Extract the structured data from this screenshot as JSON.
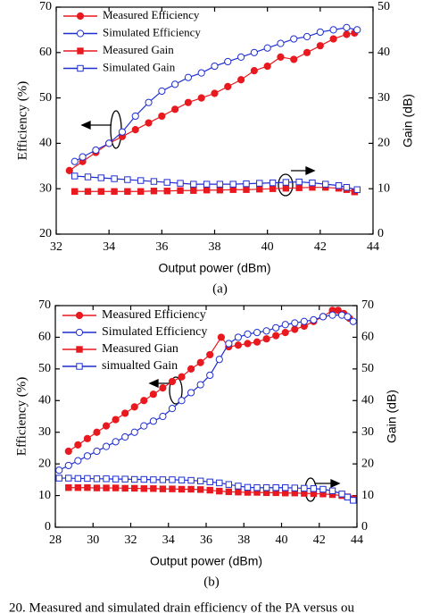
{
  "chart_data": [
    {
      "type": "line",
      "label": "(a)",
      "x_label": "Output power (dBm)",
      "y_label": "Efficiency (%)",
      "y2_label": "Gain (dB)",
      "xlim": [
        32,
        44
      ],
      "xticks": [
        32,
        34,
        36,
        38,
        40,
        42,
        44
      ],
      "ylim": [
        20,
        70
      ],
      "yticks": [
        20,
        30,
        40,
        50,
        60,
        70
      ],
      "y2lim": [
        0,
        50
      ],
      "y2ticks": [
        0,
        10,
        20,
        30,
        40,
        50
      ],
      "legend": "upper left",
      "series": [
        {
          "name": "Measured Efficiency",
          "color": "#e8191f",
          "marker": "circle",
          "filled": true,
          "x": [
            32.5,
            33,
            33.5,
            34,
            34.5,
            35,
            35.5,
            36,
            36.5,
            37,
            37.5,
            38,
            38.5,
            39,
            39.5,
            40,
            40.5,
            41,
            41.5,
            42,
            42.5,
            43,
            43.3
          ],
          "values": [
            34,
            36,
            38,
            40,
            41.5,
            43,
            44.5,
            46,
            47.5,
            49,
            50,
            51,
            52.5,
            54,
            56,
            57,
            59,
            58.5,
            60,
            61.5,
            63,
            64,
            64.3
          ]
        },
        {
          "name": "Simulated Efficiency",
          "color": "#1f2fd0",
          "marker": "circle",
          "filled": false,
          "x": [
            32.7,
            33,
            33.5,
            34,
            34.5,
            35,
            35.5,
            36,
            36.5,
            37,
            37.5,
            38,
            38.5,
            39,
            39.5,
            40,
            40.5,
            41,
            41.5,
            42,
            42.5,
            43,
            43.4
          ],
          "values": [
            36,
            37,
            38.5,
            40,
            42.5,
            46,
            49,
            51.5,
            53,
            54.5,
            55.5,
            57,
            58,
            59,
            60,
            61,
            62,
            63,
            63.5,
            64.5,
            65,
            65.5,
            65
          ]
        },
        {
          "name": "Measured Gain",
          "color": "#e8191f",
          "marker": "square",
          "filled": true,
          "axis": "y2",
          "x": [
            32.7,
            33.2,
            33.7,
            34.2,
            34.7,
            35.2,
            35.7,
            36.2,
            36.7,
            37.2,
            37.7,
            38.2,
            38.7,
            39.2,
            39.7,
            40.2,
            40.7,
            41.2,
            41.7,
            42.2,
            42.7,
            43.0,
            43.3
          ],
          "values": [
            9.4,
            9.4,
            9.4,
            9.4,
            9.4,
            9.4,
            9.5,
            9.5,
            9.6,
            9.6,
            9.7,
            9.7,
            9.8,
            9.8,
            9.9,
            10,
            10.1,
            10.2,
            10.3,
            10.3,
            10.1,
            9.8,
            9.3
          ]
        },
        {
          "name": "Simulated Gain",
          "color": "#1f2fd0",
          "marker": "square",
          "filled": false,
          "axis": "y2",
          "x": [
            32.7,
            33.2,
            33.7,
            34.2,
            34.7,
            35.2,
            35.7,
            36.2,
            36.7,
            37.2,
            37.7,
            38.2,
            38.7,
            39.2,
            39.7,
            40.2,
            40.7,
            41.2,
            41.7,
            42.2,
            42.7,
            43.0,
            43.4
          ],
          "values": [
            12.8,
            12.6,
            12.4,
            12.2,
            12,
            11.8,
            11.6,
            11.4,
            11.2,
            11,
            11,
            11,
            11,
            11.1,
            11.2,
            11.3,
            11.4,
            11.5,
            11.3,
            11,
            10.7,
            10.3,
            9.8
          ]
        }
      ]
    },
    {
      "type": "line",
      "label": "(b)",
      "x_label": "Output power (dBm)",
      "y_label": "Efficiency (%)",
      "y2_label": "Gain (dB)",
      "xlim": [
        28,
        44
      ],
      "xticks": [
        28,
        30,
        32,
        34,
        36,
        38,
        40,
        42,
        44
      ],
      "ylim": [
        0,
        70
      ],
      "yticks": [
        0,
        10,
        20,
        30,
        40,
        50,
        60,
        70
      ],
      "y2lim": [
        0,
        70
      ],
      "y2ticks": [
        0,
        10,
        20,
        30,
        40,
        50,
        60,
        70
      ],
      "legend": "upper left",
      "series": [
        {
          "name": "Measured Efficiency",
          "color": "#e8191f",
          "marker": "circle",
          "filled": true,
          "x": [
            28.7,
            29.2,
            29.7,
            30.2,
            30.7,
            31.2,
            31.7,
            32.2,
            32.7,
            33.2,
            33.7,
            34.2,
            34.7,
            35.2,
            35.7,
            36.2,
            36.8,
            37.2,
            37.7,
            38.2,
            38.7,
            39.2,
            39.7,
            40.2,
            40.7,
            41.2,
            41.7,
            42.2,
            42.7,
            43.0,
            43.3,
            43.6
          ],
          "values": [
            24,
            26,
            28,
            30,
            32,
            34,
            36,
            38,
            40,
            42,
            44,
            46,
            47.5,
            50,
            52,
            54.5,
            60,
            57,
            57.5,
            58,
            58.5,
            59.5,
            60.5,
            61.5,
            62.5,
            63.5,
            65,
            66.5,
            68.5,
            68.5,
            67.5,
            66
          ]
        },
        {
          "name": "Simulated Efficiency",
          "color": "#1f2fd0",
          "marker": "circle",
          "filled": false,
          "x": [
            28.2,
            28.7,
            29.2,
            29.7,
            30.2,
            30.7,
            31.2,
            31.7,
            32.2,
            32.7,
            33.2,
            33.7,
            34.2,
            34.7,
            35.2,
            35.7,
            36.2,
            36.7,
            37.2,
            37.7,
            38.2,
            38.7,
            39.2,
            39.7,
            40.2,
            40.7,
            41.2,
            41.7,
            42.2,
            42.7,
            43.2,
            43.5,
            43.8
          ],
          "values": [
            18,
            19.5,
            21,
            22.5,
            24,
            25.5,
            27,
            28.5,
            30,
            32,
            33.5,
            35,
            37.5,
            40,
            42.5,
            45,
            48,
            53,
            58,
            60,
            61,
            61.5,
            62,
            63,
            64,
            64.5,
            65,
            65.5,
            66.5,
            67,
            67,
            66.5,
            65
          ]
        },
        {
          "name": "Measured Gian",
          "color": "#e8191f",
          "marker": "square",
          "filled": true,
          "axis": "y2",
          "x": [
            28.7,
            29.2,
            29.7,
            30.2,
            30.7,
            31.2,
            31.7,
            32.2,
            32.7,
            33.2,
            33.7,
            34.2,
            34.7,
            35.2,
            35.7,
            36.2,
            36.7,
            37.2,
            37.7,
            38.2,
            38.7,
            39.2,
            39.7,
            40.2,
            40.7,
            41.2,
            41.7,
            42.2,
            42.7,
            43.2,
            43.5,
            43.8
          ],
          "values": [
            12.5,
            12.5,
            12.5,
            12.4,
            12.4,
            12.4,
            12.3,
            12.3,
            12.2,
            12.2,
            12.1,
            12.1,
            12,
            12,
            11.9,
            11.7,
            11.4,
            11.2,
            11.1,
            11,
            11,
            10.9,
            10.9,
            10.8,
            10.8,
            10.7,
            10.6,
            10.5,
            10.3,
            10,
            9.6,
            9
          ]
        },
        {
          "name": "simualted Gain",
          "color": "#1f2fd0",
          "marker": "square",
          "filled": false,
          "axis": "y2",
          "x": [
            28.2,
            28.7,
            29.2,
            29.7,
            30.2,
            30.7,
            31.2,
            31.7,
            32.2,
            32.7,
            33.2,
            33.7,
            34.2,
            34.7,
            35.2,
            35.7,
            36.2,
            36.7,
            37.2,
            37.7,
            38.2,
            38.7,
            39.2,
            39.7,
            40.2,
            40.7,
            41.2,
            41.7,
            42.2,
            42.7,
            43.2,
            43.5,
            43.8
          ],
          "values": [
            15.5,
            15.5,
            15.4,
            15.4,
            15.3,
            15.3,
            15.2,
            15.2,
            15.1,
            15.1,
            15,
            15,
            15,
            14.9,
            14.8,
            14.6,
            14.3,
            14,
            13.5,
            13,
            12.6,
            12.5,
            12.5,
            12.5,
            12.5,
            12.4,
            12.3,
            12.2,
            12,
            11.5,
            10.5,
            9.5,
            8.5
          ]
        }
      ]
    }
  ],
  "figure_caption": "20.   Measured and simulated drain efficiency of the PA versus ou"
}
